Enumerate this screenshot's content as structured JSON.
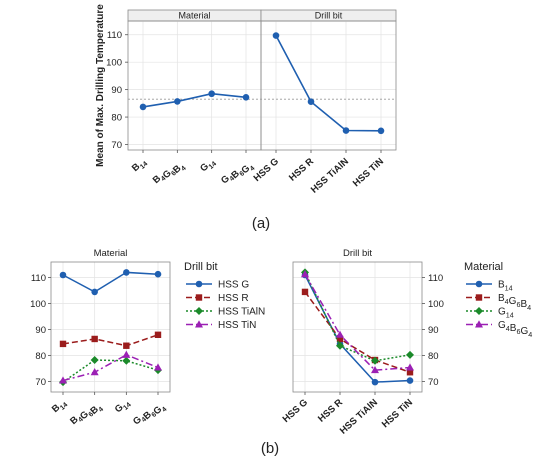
{
  "colors": {
    "main_effect_line": "#1f5fb0",
    "ref_line": "#999999",
    "grid": "#e3e3e3",
    "strip_bg": "#efefef",
    "series": {
      "blue": "#1f5fb0",
      "red": "#9b1c1c",
      "green": "#1b8a2a",
      "purple": "#9b20b4"
    }
  },
  "chart_data": [
    {
      "id": "a",
      "type": "line",
      "caption": "(a)",
      "ylabel": "Mean of Max. Drilling Temperature",
      "ylim": [
        68,
        115
      ],
      "yticks": [
        70,
        80,
        90,
        100,
        110
      ],
      "ref_line": 86.5,
      "panels": [
        {
          "strip": "Material",
          "categories": [
            {
              "label": [
                [
                  "B",
                  ""
                ],
                [
                  "14",
                  "sub"
                ]
              ]
            },
            {
              "label": [
                [
                  "B",
                  ""
                ],
                [
                  "4",
                  "sub"
                ],
                [
                  "G",
                  ""
                ],
                [
                  "6",
                  "sub"
                ],
                [
                  "B",
                  ""
                ],
                [
                  "4",
                  "sub"
                ]
              ]
            },
            {
              "label": [
                [
                  "G",
                  ""
                ],
                [
                  "14",
                  "sub"
                ]
              ]
            },
            {
              "label": [
                [
                  "G",
                  ""
                ],
                [
                  "4",
                  "sub"
                ],
                [
                  "B",
                  ""
                ],
                [
                  "6",
                  "sub"
                ],
                [
                  "G",
                  ""
                ],
                [
                  "4",
                  "sub"
                ]
              ]
            }
          ],
          "values": [
            83.7,
            85.7,
            88.5,
            87.2
          ]
        },
        {
          "strip": "Drill bit",
          "categories": [
            {
              "label": [
                [
                  "HSS G",
                  ""
                ]
              ]
            },
            {
              "label": [
                [
                  "HSS R",
                  ""
                ]
              ]
            },
            {
              "label": [
                [
                  "HSS TiAlN",
                  ""
                ]
              ]
            },
            {
              "label": [
                [
                  "HSS TiN",
                  ""
                ]
              ]
            }
          ],
          "values": [
            109.7,
            85.6,
            75.1,
            75.0
          ]
        }
      ]
    },
    {
      "id": "b1",
      "type": "line",
      "caption": "(b)",
      "title": "Material",
      "ylim": [
        66,
        116
      ],
      "yticks": [
        70,
        80,
        90,
        100,
        110
      ],
      "categories": [
        {
          "label": [
            [
              "B",
              ""
            ],
            [
              "14",
              "sub"
            ]
          ]
        },
        {
          "label": [
            [
              "B",
              ""
            ],
            [
              "4",
              "sub"
            ],
            [
              "G",
              ""
            ],
            [
              "6",
              "sub"
            ],
            [
              "B",
              ""
            ],
            [
              "4",
              "sub"
            ]
          ]
        },
        {
          "label": [
            [
              "G",
              ""
            ],
            [
              "14",
              "sub"
            ]
          ]
        },
        {
          "label": [
            [
              "G",
              ""
            ],
            [
              "4",
              "sub"
            ],
            [
              "B",
              ""
            ],
            [
              "6",
              "sub"
            ],
            [
              "G",
              ""
            ],
            [
              "4",
              "sub"
            ]
          ]
        }
      ],
      "legend": {
        "title": "Drill bit",
        "placement": "right"
      },
      "series": [
        {
          "name": [
            [
              "HSS G",
              ""
            ]
          ],
          "values": [
            111.0,
            104.5,
            112.0,
            111.3
          ],
          "color": "blue",
          "marker": "circle",
          "dash": "solid"
        },
        {
          "name": [
            [
              "HSS R",
              ""
            ]
          ],
          "values": [
            84.5,
            86.4,
            83.8,
            88.0
          ],
          "color": "red",
          "marker": "square",
          "dash": "dashed"
        },
        {
          "name": [
            [
              "HSS TiAlN",
              ""
            ]
          ],
          "values": [
            69.8,
            78.3,
            78.0,
            74.4
          ],
          "color": "green",
          "marker": "diamond",
          "dash": "dotted"
        },
        {
          "name": [
            [
              "HSS TiN",
              ""
            ]
          ],
          "values": [
            70.4,
            73.6,
            80.3,
            75.4
          ],
          "color": "purple",
          "marker": "triangle",
          "dash": "dashdot"
        }
      ]
    },
    {
      "id": "b2",
      "type": "line",
      "title": "Drill bit",
      "ylim": [
        66,
        116
      ],
      "yticks": [
        70,
        80,
        90,
        100,
        110
      ],
      "categories": [
        {
          "label": [
            [
              "HSS G",
              ""
            ]
          ]
        },
        {
          "label": [
            [
              "HSS R",
              ""
            ]
          ]
        },
        {
          "label": [
            [
              "HSS TiAlN",
              ""
            ]
          ]
        },
        {
          "label": [
            [
              "HSS TiN",
              ""
            ]
          ]
        }
      ],
      "legend": {
        "title": "Material",
        "placement": "right"
      },
      "series": [
        {
          "name": [
            [
              "B",
              ""
            ],
            [
              "14",
              "sub"
            ]
          ],
          "values": [
            111.0,
            84.5,
            69.8,
            70.4
          ],
          "color": "blue",
          "marker": "circle",
          "dash": "solid"
        },
        {
          "name": [
            [
              "B",
              ""
            ],
            [
              "4",
              "sub"
            ],
            [
              "G",
              ""
            ],
            [
              "6",
              "sub"
            ],
            [
              "B",
              ""
            ],
            [
              "4",
              "sub"
            ]
          ],
          "values": [
            104.5,
            86.4,
            78.3,
            73.6
          ],
          "color": "red",
          "marker": "square",
          "dash": "dashed"
        },
        {
          "name": [
            [
              "G",
              ""
            ],
            [
              "14",
              "sub"
            ]
          ],
          "values": [
            112.0,
            83.8,
            78.0,
            80.3
          ],
          "color": "green",
          "marker": "diamond",
          "dash": "dotted"
        },
        {
          "name": [
            [
              "G",
              ""
            ],
            [
              "4",
              "sub"
            ],
            [
              "B",
              ""
            ],
            [
              "6",
              "sub"
            ],
            [
              "G",
              ""
            ],
            [
              "4",
              "sub"
            ]
          ],
          "values": [
            111.3,
            88.0,
            74.4,
            75.4
          ],
          "color": "purple",
          "marker": "triangle",
          "dash": "dashdot"
        }
      ]
    }
  ]
}
